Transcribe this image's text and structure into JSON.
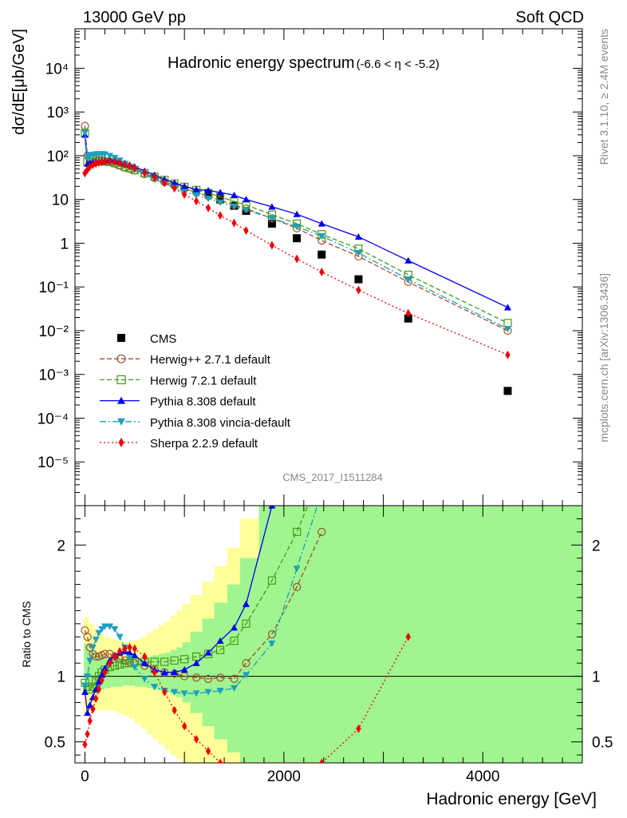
{
  "header": {
    "left": "13000 GeV pp",
    "right": "Soft QCD"
  },
  "side_labels": {
    "top": "Rivet 3.1.10, ≥ 2.4M events",
    "bottom": "mcplots.cern.ch [arXiv:1306.3436]"
  },
  "analysis_id": "CMS_2017_I1511284",
  "chart_data": [
    {
      "panel": "main",
      "type": "scatter",
      "title": "Hadronic energy spectrum",
      "title_suffix": "(-6.6 < η < -5.2)",
      "xlabel": "Hadronic energy [GeV]",
      "ylabel": "dσ/dE[μb/GeV]",
      "y_scale": "log",
      "xlim": [
        -100,
        5000
      ],
      "ylim": [
        1e-06,
        80000
      ],
      "x_ticks": [
        0,
        2000,
        4000
      ],
      "x_tick_labels": [
        "0",
        "2000",
        "4000"
      ],
      "y_ticks": [
        1e-05,
        0.0001,
        0.001,
        0.01,
        0.1,
        1,
        10,
        100,
        1000,
        10000
      ],
      "y_tick_labels": [
        "10⁻⁵",
        "10⁻⁴",
        "10⁻³",
        "10⁻²",
        "10⁻¹",
        "1",
        "10",
        "10²",
        "10³",
        "10⁴"
      ],
      "legend_position": "bottom-left",
      "series": [
        {
          "name": "CMS",
          "style": "data",
          "color": "#000000",
          "marker": "square-filled",
          "x": [
            1240,
            1360,
            1500,
            1620,
            1880,
            2130,
            2380,
            2750,
            3250,
            4250
          ],
          "y": [
            14,
            10,
            7.2,
            5.5,
            2.8,
            1.3,
            0.55,
            0.15,
            0.019,
            0.00042
          ]
        },
        {
          "name": "Herwig++ 2.7.1 default",
          "style": "dashed",
          "color": "#a0522d",
          "marker": "circle-open",
          "x": [
            0,
            25,
            50,
            80,
            110,
            140,
            170,
            200,
            250,
            300,
            350,
            400,
            450,
            500,
            600,
            700,
            800,
            900,
            1000,
            1120,
            1240,
            1360,
            1500,
            1620,
            1880,
            2130,
            2380,
            2750,
            3250,
            4250
          ],
          "y": [
            480,
            100,
            90,
            85,
            82,
            80,
            78,
            76,
            72,
            66,
            60,
            54,
            50,
            46,
            38,
            31,
            25,
            21,
            17.5,
            14.5,
            12,
            9.5,
            7.5,
            6.2,
            3.7,
            2.2,
            1.15,
            0.5,
            0.13,
            0.01
          ]
        },
        {
          "name": "Herwig 7.2.1 default",
          "style": "dashed",
          "color": "#4a9a16",
          "marker": "square-open",
          "x": [
            0,
            25,
            50,
            80,
            110,
            140,
            170,
            200,
            250,
            300,
            350,
            400,
            450,
            500,
            600,
            700,
            800,
            900,
            1000,
            1120,
            1240,
            1360,
            1500,
            1620,
            1880,
            2130,
            2380,
            2750,
            3250,
            4250
          ],
          "y": [
            330,
            72,
            72,
            72,
            74,
            74,
            74,
            74,
            72,
            68,
            62,
            56,
            52,
            47,
            40,
            33,
            28,
            23,
            19.5,
            16.5,
            14,
            11.5,
            9,
            7.5,
            4.5,
            2.8,
            1.6,
            0.75,
            0.19,
            0.015
          ]
        },
        {
          "name": "Pythia 8.308 default",
          "style": "solid",
          "color": "#0000ee",
          "marker": "triangle-up-filled",
          "x": [
            0,
            25,
            50,
            80,
            110,
            140,
            170,
            200,
            250,
            300,
            350,
            400,
            450,
            500,
            600,
            700,
            800,
            900,
            1000,
            1120,
            1240,
            1360,
            1500,
            1620,
            1880,
            2130,
            2380,
            2750,
            3250,
            4250
          ],
          "y": [
            300,
            65,
            68,
            70,
            72,
            74,
            76,
            78,
            80,
            78,
            74,
            68,
            62,
            56,
            45,
            36,
            29,
            24,
            20,
            17,
            16,
            14.5,
            12.5,
            10,
            6.8,
            4.6,
            2.8,
            1.4,
            0.4,
            0.034
          ]
        },
        {
          "name": "Pythia 8.308 vincia-default",
          "style": "dashdot",
          "color": "#1aa0c0",
          "marker": "triangle-down-filled",
          "x": [
            0,
            25,
            50,
            80,
            110,
            140,
            170,
            200,
            250,
            300,
            350,
            400,
            450,
            500,
            600,
            700,
            800,
            900,
            1000,
            1120,
            1240,
            1360,
            1500,
            1620,
            1880,
            2130,
            2380,
            2750,
            3250,
            4250
          ],
          "y": [
            340,
            92,
            100,
            105,
            108,
            110,
            110,
            108,
            100,
            90,
            78,
            66,
            56,
            48,
            38,
            29,
            23,
            18.5,
            15,
            12.5,
            10.5,
            8.6,
            7,
            5.8,
            3.7,
            2.4,
            1.45,
            0.6,
            0.15,
            0.011
          ]
        },
        {
          "name": "Sherpa 2.2.9 default",
          "style": "dotted",
          "color": "#ee0000",
          "marker": "diamond-filled",
          "x": [
            0,
            25,
            50,
            80,
            110,
            140,
            170,
            200,
            250,
            300,
            350,
            400,
            450,
            500,
            600,
            700,
            800,
            900,
            1000,
            1120,
            1240,
            1360,
            1500,
            1620,
            1880,
            2130,
            2380,
            2750,
            3250,
            4250
          ],
          "y": [
            40,
            48,
            56,
            62,
            66,
            70,
            72,
            74,
            74,
            72,
            68,
            63,
            58,
            52,
            41,
            32,
            24,
            18,
            13,
            9.2,
            6.4,
            4.3,
            2.9,
            1.95,
            0.9,
            0.44,
            0.22,
            0.085,
            0.025,
            0.0028
          ]
        }
      ]
    },
    {
      "panel": "ratio",
      "type": "line",
      "ylabel": "Ratio to CMS",
      "xlabel": "Hadronic energy [GeV]",
      "xlim": [
        -100,
        5000
      ],
      "ylim": [
        0.34,
        2.3
      ],
      "y_ticks": [
        0.5,
        1,
        2
      ],
      "y_tick_labels": [
        "0.5",
        "1",
        "2"
      ],
      "reference_line": 1,
      "series": [
        {
          "name": "Herwig++ 2.7.1 default",
          "color": "#a0522d",
          "x": [
            0,
            25,
            50,
            80,
            110,
            140,
            170,
            200,
            250,
            300,
            350,
            400,
            450,
            500,
            600,
            700,
            800,
            900,
            1000,
            1120,
            1240,
            1360,
            1500,
            1620,
            1880,
            2130,
            2380
          ],
          "y": [
            1.35,
            1.3,
            1.22,
            1.17,
            1.15,
            1.15,
            1.16,
            1.17,
            1.17,
            1.15,
            1.13,
            1.12,
            1.11,
            1.1,
            1.08,
            1.05,
            1.03,
            1.02,
            1.0,
            0.99,
            0.98,
            0.99,
            0.98,
            1.1,
            1.32,
            1.68,
            2.1
          ]
        },
        {
          "name": "Herwig 7.2.1 default",
          "color": "#4a9a16",
          "x": [
            0,
            25,
            50,
            80,
            110,
            140,
            170,
            200,
            250,
            300,
            350,
            400,
            450,
            500,
            600,
            700,
            800,
            900,
            1000,
            1120,
            1240,
            1360,
            1500,
            1620,
            1880,
            2130,
            2380
          ],
          "y": [
            0.95,
            0.92,
            0.9,
            0.92,
            0.96,
            1.0,
            1.03,
            1.05,
            1.07,
            1.08,
            1.09,
            1.1,
            1.1,
            1.11,
            1.11,
            1.11,
            1.11,
            1.12,
            1.13,
            1.15,
            1.17,
            1.2,
            1.27,
            1.4,
            1.73,
            2.1,
            2.55
          ]
        },
        {
          "name": "Pythia 8.308 default",
          "color": "#0000ee",
          "x": [
            0,
            25,
            50,
            80,
            110,
            140,
            170,
            200,
            250,
            300,
            350,
            400,
            450,
            500,
            600,
            700,
            800,
            900,
            1000,
            1120,
            1240,
            1360,
            1500,
            1620,
            1880
          ],
          "y": [
            0.88,
            0.72,
            0.78,
            0.84,
            0.9,
            0.96,
            1.01,
            1.06,
            1.12,
            1.16,
            1.18,
            1.19,
            1.18,
            1.16,
            1.1,
            1.05,
            1.03,
            1.03,
            1.05,
            1.1,
            1.18,
            1.27,
            1.37,
            1.55,
            2.3
          ]
        },
        {
          "name": "Pythia 8.308 vincia-default",
          "color": "#1aa0c0",
          "x": [
            0,
            25,
            50,
            80,
            110,
            140,
            170,
            200,
            250,
            300,
            350,
            400,
            450,
            500,
            600,
            700,
            800,
            900,
            1000,
            1120,
            1240,
            1360,
            1500,
            1620,
            1880,
            2130,
            2380
          ],
          "y": [
            0.93,
            1.0,
            1.12,
            1.22,
            1.28,
            1.33,
            1.36,
            1.38,
            1.38,
            1.36,
            1.3,
            1.22,
            1.14,
            1.07,
            0.98,
            0.92,
            0.89,
            0.88,
            0.87,
            0.87,
            0.88,
            0.89,
            0.91,
            1.01,
            1.25,
            1.82,
            2.4
          ]
        },
        {
          "name": "Sherpa 2.2.9 default",
          "color": "#ee0000",
          "x": [
            0,
            25,
            50,
            80,
            110,
            140,
            170,
            200,
            250,
            300,
            350,
            400,
            450,
            500,
            600,
            700,
            800,
            900,
            1000,
            1120,
            1240,
            1360,
            2380,
            2750,
            3250
          ],
          "y": [
            0.48,
            0.56,
            0.66,
            0.75,
            0.83,
            0.9,
            0.97,
            1.03,
            1.1,
            1.15,
            1.19,
            1.21,
            1.22,
            1.21,
            1.15,
            1.03,
            0.88,
            0.74,
            0.62,
            0.52,
            0.43,
            0.34,
            0.34,
            0.6,
            1.3
          ]
        }
      ]
    }
  ]
}
